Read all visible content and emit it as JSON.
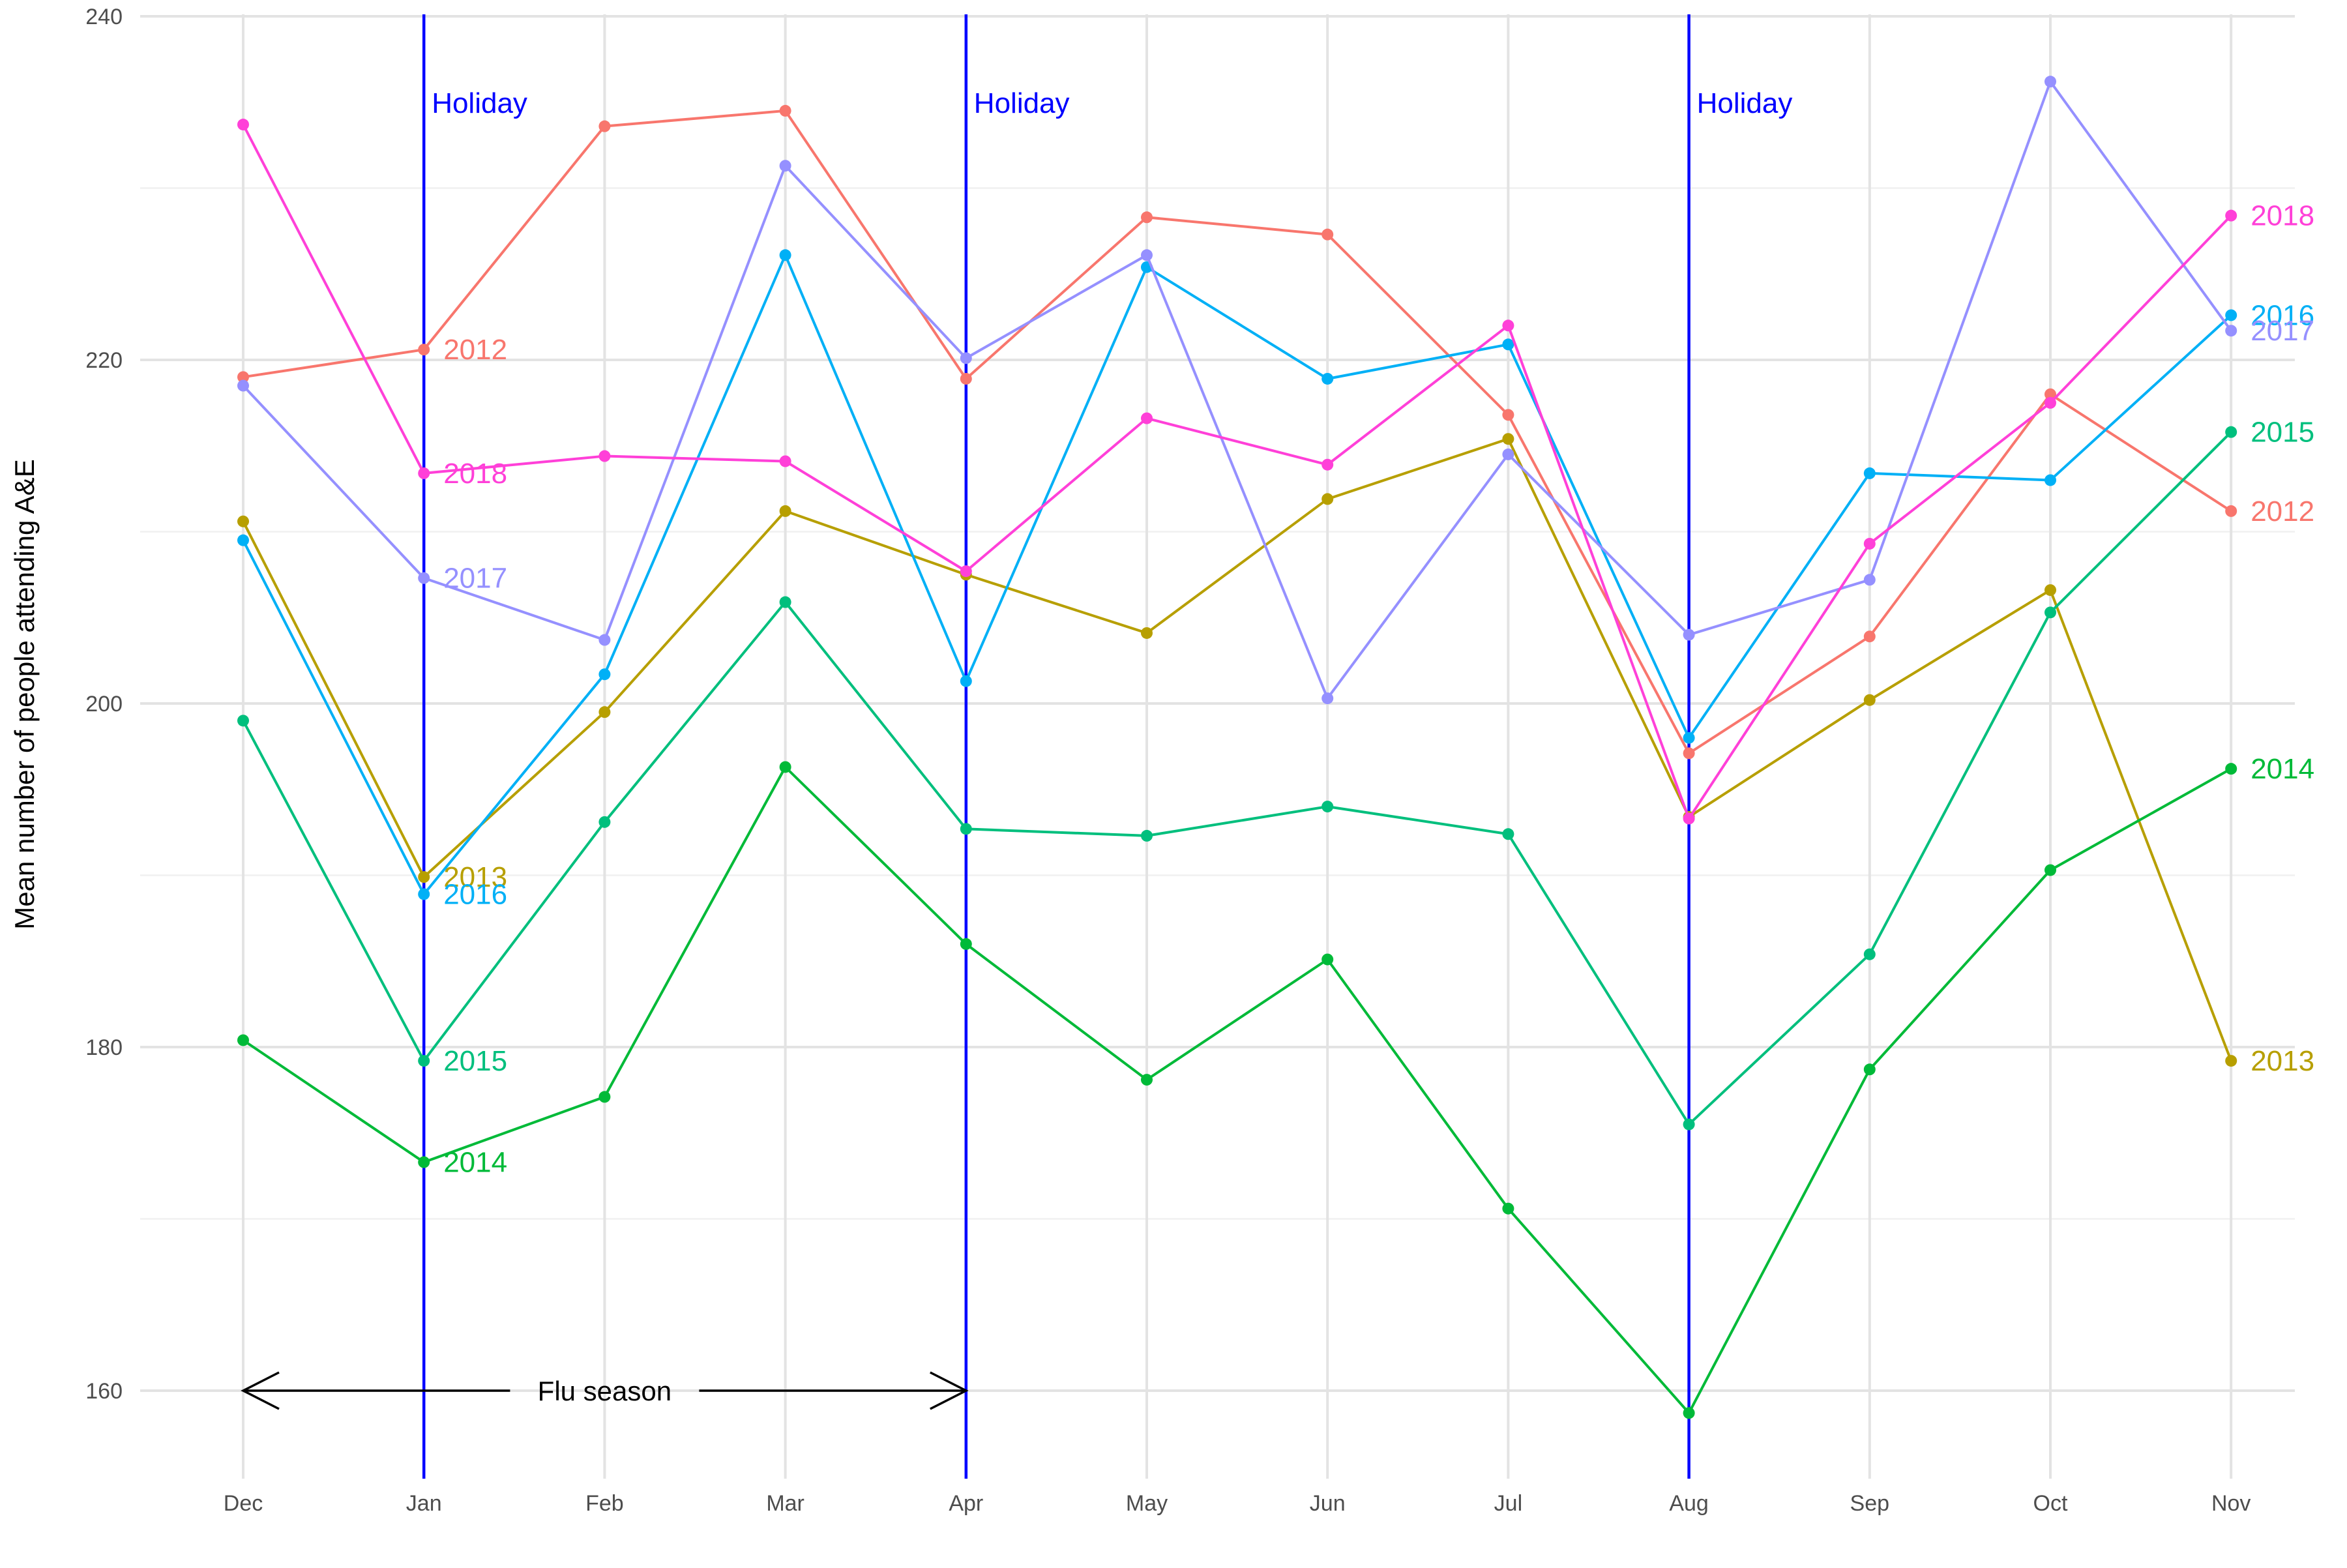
{
  "chart_data": {
    "type": "line",
    "title": "",
    "xlabel": "",
    "ylabel": "Mean number of people attending A&E",
    "categories": [
      "Dec",
      "Jan",
      "Feb",
      "Mar",
      "Apr",
      "May",
      "Jun",
      "Jul",
      "Aug",
      "Sep",
      "Oct",
      "Nov"
    ],
    "y_ticks": [
      160,
      180,
      200,
      220,
      240
    ],
    "ylim": [
      155,
      240
    ],
    "grid": true,
    "legend": "none (series labelled directly at Jan and Nov)",
    "series": [
      {
        "name": "2012",
        "color": "#F8766D",
        "values": [
          219.0,
          220.6,
          233.6,
          234.5,
          218.9,
          228.3,
          227.3,
          216.8,
          197.1,
          203.9,
          218.0,
          211.2
        ]
      },
      {
        "name": "2013",
        "color": "#B79F00",
        "values": [
          210.6,
          189.9,
          199.5,
          211.2,
          207.5,
          204.1,
          211.9,
          215.4,
          193.4,
          200.2,
          206.6,
          179.2
        ]
      },
      {
        "name": "2014",
        "color": "#00BA38",
        "values": [
          180.4,
          173.3,
          177.1,
          196.3,
          186.0,
          178.1,
          185.1,
          170.6,
          158.7,
          178.7,
          190.3,
          196.2
        ]
      },
      {
        "name": "2015",
        "color": "#00BF7D",
        "values": [
          199.0,
          179.2,
          193.1,
          205.9,
          192.7,
          192.3,
          194.0,
          192.4,
          175.5,
          185.4,
          205.3,
          215.8
        ]
      },
      {
        "name": "2016",
        "color": "#00B0F6",
        "values": [
          209.5,
          188.9,
          201.7,
          226.1,
          201.3,
          225.4,
          218.9,
          220.9,
          198.0,
          213.4,
          213.0,
          222.6
        ]
      },
      {
        "name": "2017",
        "color": "#9590FF",
        "values": [
          218.5,
          207.3,
          203.7,
          231.3,
          220.1,
          226.1,
          200.3,
          214.5,
          204.0,
          207.2,
          236.2,
          221.7
        ]
      },
      {
        "name": "2018",
        "color": "#FF40D8",
        "values": [
          233.7,
          213.4,
          214.4,
          214.1,
          207.7,
          216.6,
          213.9,
          222.0,
          193.3,
          209.3,
          217.5,
          228.4
        ]
      }
    ],
    "holiday_lines": [
      {
        "category": "Jan",
        "label": "Holiday",
        "color": "#0000FF"
      },
      {
        "category": "Apr",
        "label": "Holiday",
        "color": "#0000FF"
      },
      {
        "category": "Aug",
        "label": "Holiday",
        "color": "#0000FF"
      }
    ],
    "annotations": [
      {
        "type": "double-arrow",
        "text": "Flu season",
        "from": "Dec",
        "to": "Apr",
        "y": 160
      }
    ]
  }
}
